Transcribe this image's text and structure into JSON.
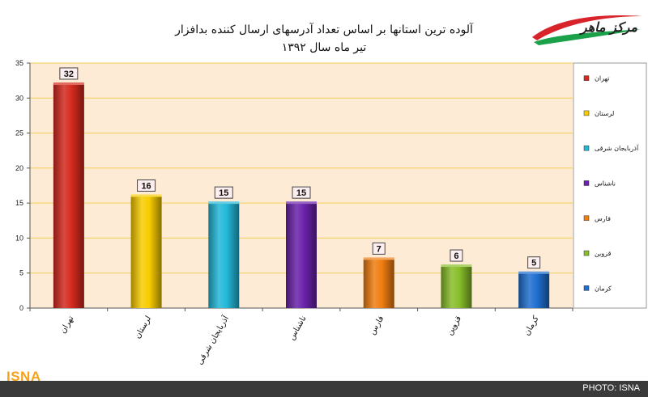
{
  "header": {
    "title_line1": "آلوده ترین استانها بر اساس تعداد آدرسهای ارسال کننده بدافزار",
    "title_line2": "تیر ماه سال ۱۳۹۲",
    "logo_text": "مرکز ماهر"
  },
  "footer": {
    "brand": "ISNA",
    "credit": "PHOTO: ISNA"
  },
  "colors": {
    "plot_bg": "#fdebd6",
    "gridline": "#f2cc55",
    "footer_bg": "#3a3a3a",
    "brand": "#f7a21b"
  },
  "chart_data": {
    "type": "bar",
    "title": "آلوده ترین استانها بر اساس تعداد آدرسهای ارسال کننده بدافزار",
    "subtitle": "تیر ماه سال ۱۳۹۲",
    "categories": [
      "تهران",
      "لرستان",
      "آذربایجان شرقی",
      "ناشناس",
      "فارس",
      "قزوین",
      "کرمان"
    ],
    "values": [
      32,
      16,
      15,
      15,
      7,
      6,
      5
    ],
    "colors": [
      "#d42a1e",
      "#f7cc00",
      "#22b8d8",
      "#6a22aa",
      "#f07d10",
      "#88be2a",
      "#1f6fd0"
    ],
    "ylim": [
      0,
      35
    ],
    "yticks": [
      0,
      5,
      10,
      15,
      20,
      25,
      30,
      35
    ],
    "grid": true,
    "legend_position": "right",
    "legend": [
      "تهران",
      "لرستان",
      "آذربایجان شرقی",
      "ناشناس",
      "فارس",
      "قزوین",
      "کرمان"
    ],
    "xlabel": "",
    "ylabel": ""
  }
}
